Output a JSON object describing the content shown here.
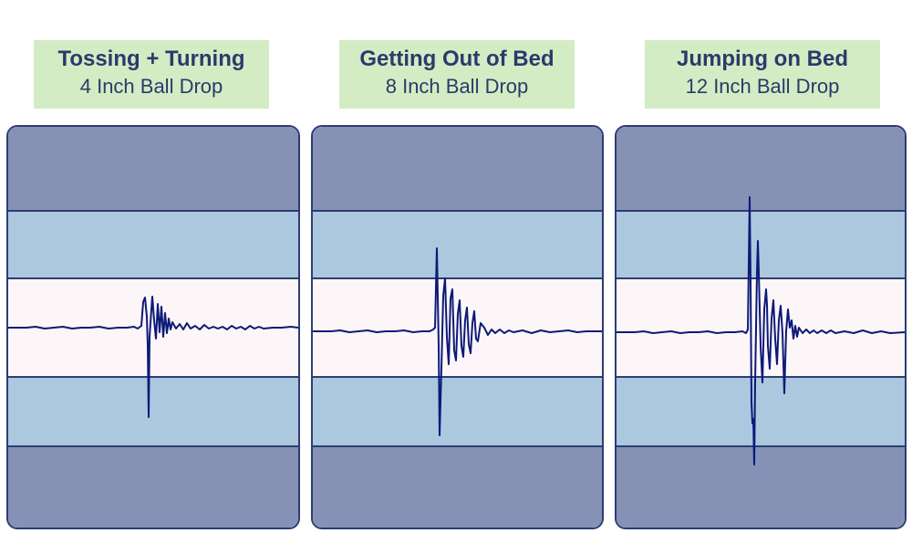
{
  "colors": {
    "label_bg": "#d3ecc4",
    "outer_band": "#8592b5",
    "middle_band": "#abc8df",
    "center_band": "#fdf6f8",
    "wave": "#0c1a78",
    "border": "#2d3c73"
  },
  "panels": [
    {
      "title": "Tossing + Turning",
      "subtitle": "4 Inch Ball Drop"
    },
    {
      "title": "Getting Out of Bed",
      "subtitle": "8 Inch Ball Drop"
    },
    {
      "title": "Jumping on Bed",
      "subtitle": "12 Inch Ball Drop"
    }
  ]
}
